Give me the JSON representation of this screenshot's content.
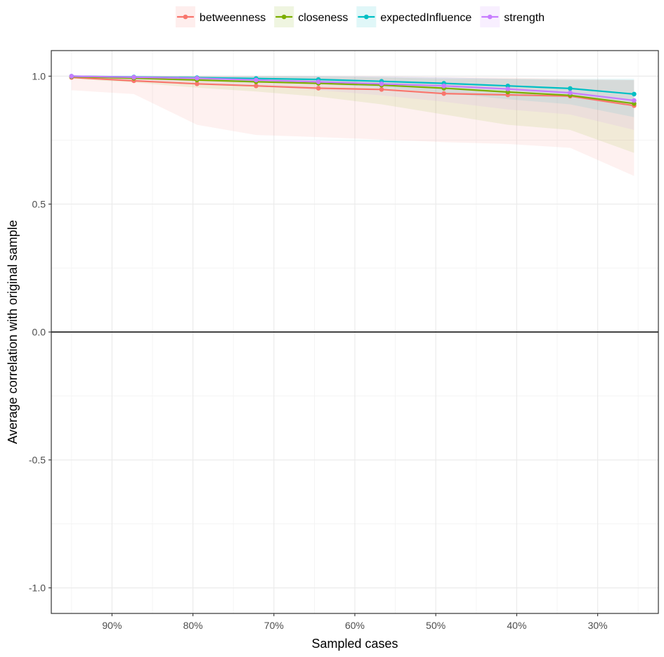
{
  "chart_data": {
    "type": "line",
    "title": "",
    "xlabel": "Sampled cases",
    "ylabel": "Average correlation with original sample",
    "x_axis_reversed": true,
    "xlim": [
      0.975,
      0.225
    ],
    "ylim": [
      -1.1,
      1.1
    ],
    "x_ticks": [
      0.9,
      0.8,
      0.7,
      0.6,
      0.5,
      0.4,
      0.3
    ],
    "x_tick_labels": [
      "90%",
      "80%",
      "70%",
      "60%",
      "50%",
      "40%",
      "30%"
    ],
    "y_ticks": [
      1.0,
      0.5,
      0.0,
      -0.5,
      -1.0
    ],
    "y_tick_labels": [
      "1.0",
      "0.5",
      "0.0",
      "-0.5",
      "-1.0"
    ],
    "zero_line": true,
    "grid": true,
    "legend_position": "top",
    "x": [
      0.95,
      0.873,
      0.795,
      0.722,
      0.645,
      0.567,
      0.49,
      0.411,
      0.334,
      0.255
    ],
    "series": [
      {
        "name": "betweenness",
        "color": "#F8766D",
        "values": [
          0.995,
          0.982,
          0.97,
          0.962,
          0.953,
          0.948,
          0.932,
          0.927,
          0.922,
          0.885
        ],
        "lower": [
          0.945,
          0.93,
          0.81,
          0.77,
          0.762,
          0.752,
          0.742,
          0.735,
          0.72,
          0.61
        ],
        "upper": [
          1.0,
          1.0,
          1.0,
          1.0,
          1.0,
          1.0,
          0.997,
          0.995,
          0.99,
          0.985
        ]
      },
      {
        "name": "closeness",
        "color": "#7CAE00",
        "values": [
          0.998,
          0.992,
          0.985,
          0.978,
          0.972,
          0.965,
          0.953,
          0.938,
          0.925,
          0.893
        ],
        "lower": [
          0.99,
          0.975,
          0.955,
          0.94,
          0.92,
          0.89,
          0.85,
          0.81,
          0.79,
          0.7
        ],
        "upper": [
          1.0,
          1.0,
          1.0,
          1.0,
          0.998,
          0.995,
          0.99,
          0.99,
          0.985,
          0.985
        ]
      },
      {
        "name": "expectedInfluence",
        "color": "#00BFC4",
        "values": [
          1.0,
          0.997,
          0.994,
          0.991,
          0.987,
          0.98,
          0.972,
          0.962,
          0.952,
          0.93
        ],
        "lower": [
          0.995,
          0.99,
          0.985,
          0.98,
          0.97,
          0.955,
          0.935,
          0.91,
          0.89,
          0.84
        ],
        "upper": [
          1.0,
          1.0,
          1.0,
          1.0,
          1.0,
          0.998,
          0.995,
          0.99,
          0.99,
          0.99
        ]
      },
      {
        "name": "strength",
        "color": "#C77CFF",
        "values": [
          1.0,
          0.996,
          0.992,
          0.985,
          0.978,
          0.97,
          0.962,
          0.95,
          0.935,
          0.905
        ],
        "lower": [
          0.995,
          0.985,
          0.975,
          0.96,
          0.945,
          0.925,
          0.9,
          0.87,
          0.85,
          0.79
        ],
        "upper": [
          1.0,
          1.0,
          1.0,
          1.0,
          1.0,
          0.998,
          0.995,
          0.99,
          0.985,
          0.985
        ]
      }
    ]
  }
}
